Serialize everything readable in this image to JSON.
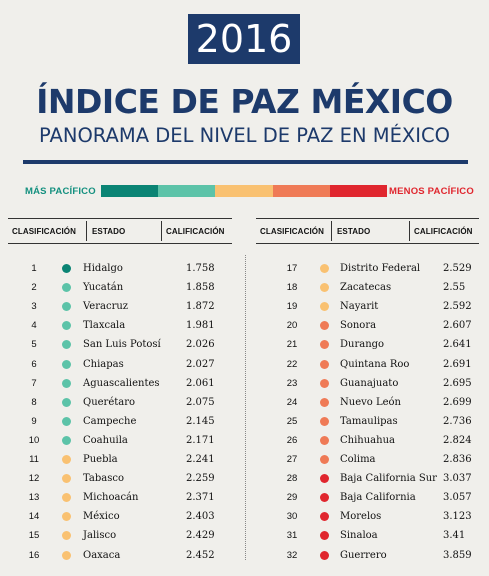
{
  "year": "2016",
  "title": "ÍNDICE DE PAZ MÉXICO",
  "subtitle": "PANORAMA DEL NIVEL DE PAZ EN MÉXICO",
  "legend": {
    "most": "MÁS PACÍFICO",
    "least": "MENOS PACÍFICO",
    "colors": [
      "#0b8474",
      "#5cc3a8",
      "#f9c171",
      "#ef7a56",
      "#e0262e"
    ]
  },
  "headers": {
    "rank": "CLASIFICACIÓN",
    "state": "ESTADO",
    "score": "CALIFICACIÓN"
  },
  "colors": {
    "dark_green": "#0b8474",
    "light_green": "#5cc3a8",
    "yellow": "#f9c171",
    "orange": "#ef7a56",
    "red": "#e0262e"
  },
  "rows_left": [
    {
      "rank": "1",
      "state": "Hidalgo",
      "score": "1.758",
      "color": "#0b8474"
    },
    {
      "rank": "2",
      "state": "Yucatán",
      "score": "1.858",
      "color": "#5cc3a8"
    },
    {
      "rank": "3",
      "state": "Veracruz",
      "score": "1.872",
      "color": "#5cc3a8"
    },
    {
      "rank": "4",
      "state": "Tlaxcala",
      "score": "1.981",
      "color": "#5cc3a8"
    },
    {
      "rank": "5",
      "state": "San Luis Potosí",
      "score": "2.026",
      "color": "#5cc3a8"
    },
    {
      "rank": "6",
      "state": "Chiapas",
      "score": "2.027",
      "color": "#5cc3a8"
    },
    {
      "rank": "7",
      "state": "Aguascalientes",
      "score": "2.061",
      "color": "#5cc3a8"
    },
    {
      "rank": "8",
      "state": "Querétaro",
      "score": "2.075",
      "color": "#5cc3a8"
    },
    {
      "rank": "9",
      "state": "Campeche",
      "score": "2.145",
      "color": "#5cc3a8"
    },
    {
      "rank": "10",
      "state": "Coahuila",
      "score": "2.171",
      "color": "#5cc3a8"
    },
    {
      "rank": "11",
      "state": "Puebla",
      "score": "2.241",
      "color": "#f9c171"
    },
    {
      "rank": "12",
      "state": "Tabasco",
      "score": "2.259",
      "color": "#f9c171"
    },
    {
      "rank": "13",
      "state": "Michoacán",
      "score": "2.371",
      "color": "#f9c171"
    },
    {
      "rank": "14",
      "state": "México",
      "score": "2.403",
      "color": "#f9c171"
    },
    {
      "rank": "15",
      "state": "Jalisco",
      "score": "2.429",
      "color": "#f9c171"
    },
    {
      "rank": "16",
      "state": "Oaxaca",
      "score": "2.452",
      "color": "#f9c171"
    }
  ],
  "rows_right": [
    {
      "rank": "17",
      "state": "Distrito Federal",
      "score": "2.529",
      "color": "#f9c171"
    },
    {
      "rank": "18",
      "state": "Zacatecas",
      "score": "2.55",
      "color": "#f9c171"
    },
    {
      "rank": "19",
      "state": "Nayarit",
      "score": "2.592",
      "color": "#f9c171"
    },
    {
      "rank": "20",
      "state": "Sonora",
      "score": "2.607",
      "color": "#ef7a56"
    },
    {
      "rank": "21",
      "state": "Durango",
      "score": "2.641",
      "color": "#ef7a56"
    },
    {
      "rank": "22",
      "state": "Quintana Roo",
      "score": "2.691",
      "color": "#ef7a56"
    },
    {
      "rank": "23",
      "state": "Guanajuato",
      "score": "2.695",
      "color": "#ef7a56"
    },
    {
      "rank": "24",
      "state": "Nuevo León",
      "score": "2.699",
      "color": "#ef7a56"
    },
    {
      "rank": "25",
      "state": "Tamaulipas",
      "score": "2.736",
      "color": "#ef7a56"
    },
    {
      "rank": "26",
      "state": "Chihuahua",
      "score": "2.824",
      "color": "#ef7a56"
    },
    {
      "rank": "27",
      "state": "Colima",
      "score": "2.836",
      "color": "#ef7a56"
    },
    {
      "rank": "28",
      "state": "Baja California Sur",
      "score": "3.037",
      "color": "#e0262e"
    },
    {
      "rank": "29",
      "state": "Baja California",
      "score": "3.057",
      "color": "#e0262e"
    },
    {
      "rank": "30",
      "state": "Morelos",
      "score": "3.123",
      "color": "#e0262e"
    },
    {
      "rank": "31",
      "state": "Sinaloa",
      "score": "3.41",
      "color": "#e0262e"
    },
    {
      "rank": "32",
      "state": "Guerrero",
      "score": "3.859",
      "color": "#e0262e"
    }
  ]
}
